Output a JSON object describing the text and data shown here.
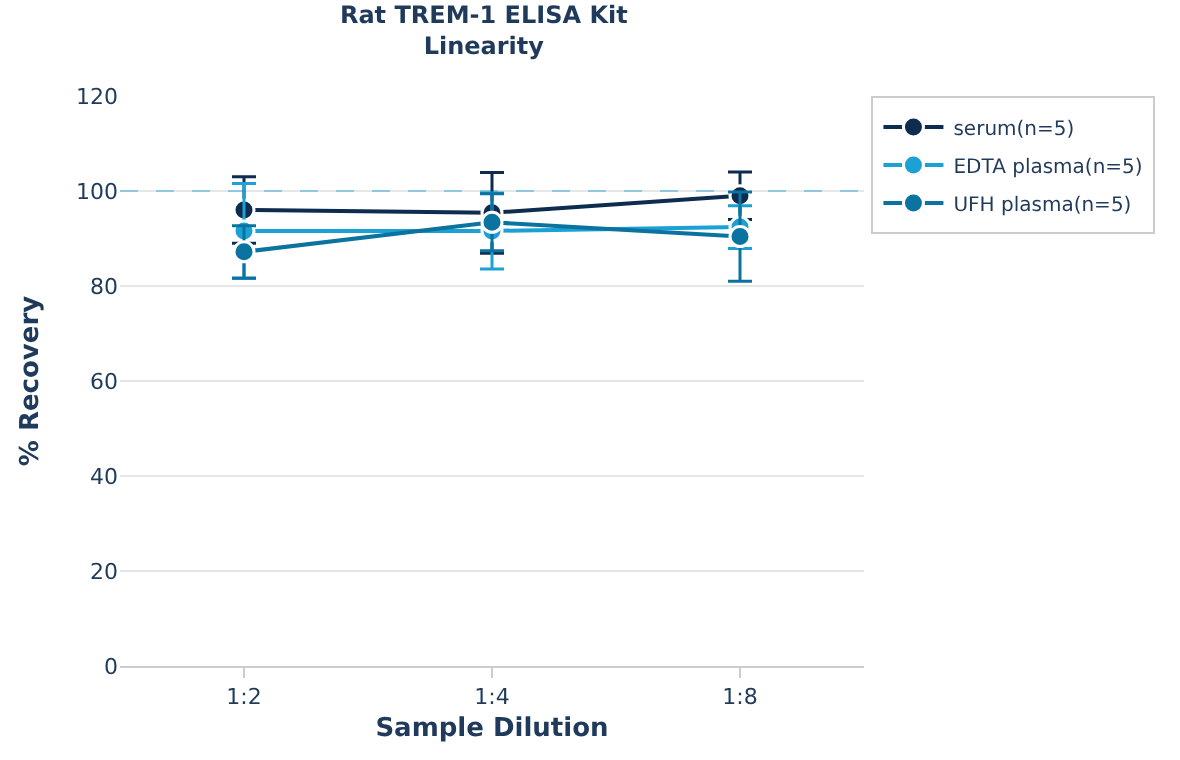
{
  "chart_data": {
    "type": "line",
    "title": "Rat TREM-1 ELISA Kit",
    "subtitle": "Linearity",
    "xlabel": "Sample Dilution",
    "ylabel": "% Recovery",
    "categories": [
      "1:2",
      "1:4",
      "1:8"
    ],
    "series": [
      {
        "name": "serum(n=5)",
        "color": "#0d2c4f",
        "values": [
          96,
          95.4,
          99
        ],
        "errors": [
          7,
          8.5,
          5
        ]
      },
      {
        "name": "EDTA plasma(n=5)",
        "color": "#1ba1d4",
        "values": [
          91.6,
          91.6,
          92.4
        ],
        "errors": [
          10,
          8,
          4.5
        ]
      },
      {
        "name": "UFH plasma(n=5)",
        "color": "#0a73a0",
        "values": [
          87.2,
          93.4,
          90.4
        ],
        "errors": [
          5.5,
          6,
          9.4
        ]
      }
    ],
    "ylim": [
      0,
      120
    ],
    "yticks": [
      0,
      20,
      40,
      60,
      80,
      100,
      120
    ],
    "ref_lines": [
      {
        "axis": "y",
        "value": 100,
        "color": "#8fc8e0",
        "line_style": "dashed"
      }
    ],
    "grid": "y",
    "legend": "top right",
    "marker": "circle",
    "line_style": "solid"
  }
}
